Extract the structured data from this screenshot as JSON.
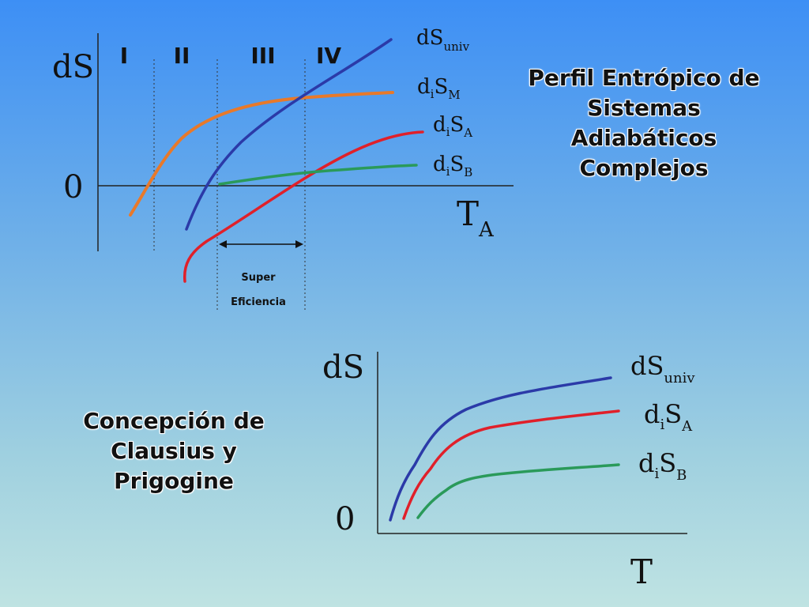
{
  "top_diagram": {
    "axis_y_label": "dS",
    "axis_zero": "0",
    "axis_x_label_main": "T",
    "axis_x_label_sub": "A",
    "regions": [
      "I",
      "II",
      "III",
      "IV"
    ],
    "curves": [
      {
        "main": "dS",
        "sub": "univ",
        "color": "#2b3aa8"
      },
      {
        "main": "d",
        "sub_i": "i",
        "main2": "S",
        "sub": "M",
        "color": "#e8792a"
      },
      {
        "main": "d",
        "sub_i": "i",
        "main2": "S",
        "sub": "A",
        "color": "#e0202a"
      },
      {
        "main": "d",
        "sub_i": "i",
        "main2": "S",
        "sub": "B",
        "color": "#2a9a5a"
      }
    ],
    "super_line1": "Super",
    "super_line2": "Eficiencia"
  },
  "top_title": {
    "lines": [
      "Perfil Entrópico de",
      "Sistemas",
      "Adiabáticos",
      "Complejos"
    ]
  },
  "bottom_diagram": {
    "axis_y_label": "dS",
    "axis_zero": "0",
    "axis_x_label": "T",
    "curves": [
      {
        "main": "dS",
        "sub": "univ",
        "color": "#2b3aa8"
      },
      {
        "main": "d",
        "sub_i": "i",
        "main2": "S",
        "sub": "A",
        "color": "#e0202a"
      },
      {
        "main": "d",
        "sub_i": "i",
        "main2": "S",
        "sub": "B",
        "color": "#2a9a5a"
      }
    ]
  },
  "bottom_title": {
    "lines": [
      "Concepción de",
      "Clausius y",
      "Prigogine"
    ]
  }
}
